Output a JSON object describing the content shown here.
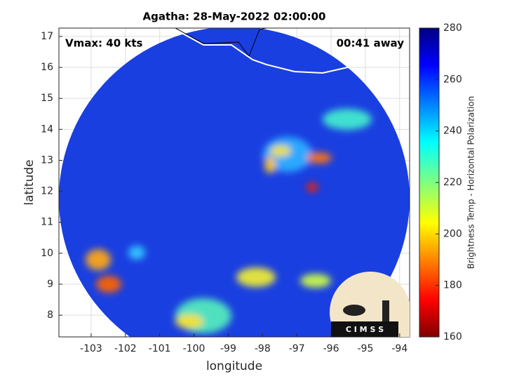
{
  "title": "Agatha: 28-May-2022 02:00:00",
  "vmax_label": "Vmax: 40 kts",
  "time_away": "00:41 away",
  "map": {
    "x_label": "longitude",
    "y_label": "latitude",
    "xlim": [
      -103.94,
      -93.71
    ],
    "ylim": [
      7.3,
      17.27
    ],
    "xticks": [
      -103,
      -102,
      -101,
      -100,
      -99,
      -98,
      -97,
      -96,
      -95,
      -94
    ],
    "yticks": [
      8,
      9,
      10,
      11,
      12,
      13,
      14,
      15,
      16,
      17
    ],
    "grid": true
  },
  "colorbar": {
    "label": "Brightness Temp - Horizontal Polarization",
    "lim": [
      160,
      280
    ],
    "ticks": [
      160,
      180,
      200,
      220,
      240,
      260,
      280
    ]
  },
  "logo": "C I M S S"
}
